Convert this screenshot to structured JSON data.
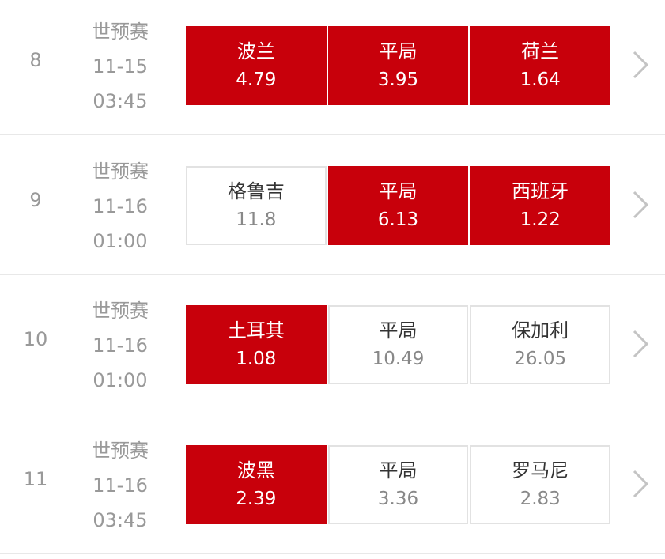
{
  "accent_color": "#c8000b",
  "matches": [
    {
      "index": "8",
      "league": "世预赛",
      "date": "11-15",
      "time": "03:45",
      "options": [
        {
          "label": "波兰",
          "odds": "4.79",
          "selected": true
        },
        {
          "label": "平局",
          "odds": "3.95",
          "selected": true
        },
        {
          "label": "荷兰",
          "odds": "1.64",
          "selected": true
        }
      ]
    },
    {
      "index": "9",
      "league": "世预赛",
      "date": "11-16",
      "time": "01:00",
      "options": [
        {
          "label": "格鲁吉",
          "odds": "11.8",
          "selected": false
        },
        {
          "label": "平局",
          "odds": "6.13",
          "selected": true
        },
        {
          "label": "西班牙",
          "odds": "1.22",
          "selected": true
        }
      ]
    },
    {
      "index": "10",
      "league": "世预赛",
      "date": "11-16",
      "time": "01:00",
      "options": [
        {
          "label": "土耳其",
          "odds": "1.08",
          "selected": true
        },
        {
          "label": "平局",
          "odds": "10.49",
          "selected": false
        },
        {
          "label": "保加利",
          "odds": "26.05",
          "selected": false
        }
      ]
    },
    {
      "index": "11",
      "league": "世预赛",
      "date": "11-16",
      "time": "03:45",
      "options": [
        {
          "label": "波黑",
          "odds": "2.39",
          "selected": true
        },
        {
          "label": "平局",
          "odds": "3.36",
          "selected": false
        },
        {
          "label": "罗马尼",
          "odds": "2.83",
          "selected": false
        }
      ]
    }
  ]
}
